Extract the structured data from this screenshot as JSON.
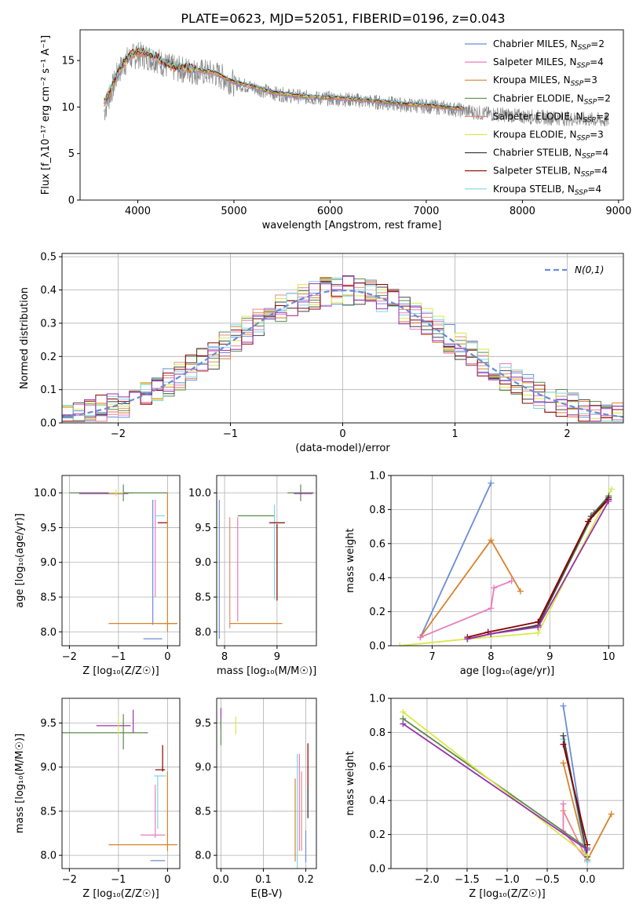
{
  "figure_title": "PLATE=0623, MJD=52051, FIBERID=0196, z=0.043",
  "chart_data": [
    {
      "id": "spectrum",
      "type": "line",
      "xlabel": "wavelength [Angstrom, rest frame]",
      "ylabel": "Flux [f_λ10⁻¹⁷ erg cm⁻² s⁻¹ A⁻¹]",
      "xlim": [
        3400,
        9050
      ],
      "ylim": [
        0,
        18.3
      ],
      "xticks": [
        4000,
        5000,
        6000,
        7000,
        8000,
        9000
      ],
      "yticks": [
        0,
        5,
        10,
        15
      ],
      "grid": false,
      "legend_position": "top-right",
      "data": {
        "x": [
          3650,
          3700,
          3800,
          3900,
          4000,
          4100,
          4200,
          4300,
          4400,
          4500,
          4600,
          4800,
          5000,
          5200,
          5400,
          5600,
          5800,
          6000,
          6200,
          6400,
          6600,
          6800,
          7000,
          7200,
          7400,
          7600,
          7800,
          8000,
          8200,
          8400,
          8600,
          8800,
          8900
        ],
        "y": [
          9.5,
          11.0,
          13.8,
          15.2,
          15.6,
          15.4,
          15.1,
          14.4,
          14.1,
          14.0,
          13.8,
          13.6,
          12.6,
          12.1,
          11.5,
          11.2,
          11.0,
          10.9,
          10.8,
          10.6,
          10.4,
          10.2,
          10.1,
          9.9,
          9.6,
          9.3,
          9.2,
          9.0,
          8.9,
          8.8,
          8.7,
          8.6,
          8.5
        ],
        "noise_amplitude": 1.5
      },
      "model": {
        "x": [
          3650,
          3700,
          3800,
          3900,
          4000,
          4100,
          4200,
          4300,
          4400,
          4500,
          4600,
          4800,
          5000,
          5200,
          5400,
          5600,
          5800,
          6000,
          6200,
          6400,
          6600,
          6800,
          7000,
          7200,
          7400
        ],
        "y": [
          10.5,
          11.5,
          14.0,
          15.4,
          16.0,
          15.8,
          15.3,
          14.6,
          14.3,
          14.2,
          14.0,
          13.7,
          12.7,
          12.2,
          11.6,
          11.3,
          11.1,
          11.0,
          10.9,
          10.7,
          10.5,
          10.3,
          10.2,
          10.0,
          9.8
        ]
      },
      "series": [
        {
          "name": "Chabrier MILES, N_SSP=2",
          "label_main": "Chabrier MILES, N",
          "label_sub": "SSP",
          "label_end": "=2",
          "color": "#6a8cd6"
        },
        {
          "name": "Salpeter MILES, N_SSP=4",
          "label_main": "Salpeter MILES, N",
          "label_sub": "SSP",
          "label_end": "=4",
          "color": "#e87dbe"
        },
        {
          "name": "Kroupa MILES, N_SSP=3",
          "label_main": "Kroupa MILES, N",
          "label_sub": "SSP",
          "label_end": "=3",
          "color": "#d9822b"
        },
        {
          "name": "Chabrier ELODIE, N_SSP=2",
          "label_main": "Chabrier ELODIE, N",
          "label_sub": "SSP",
          "label_end": "=2",
          "color": "#5a8a4a"
        },
        {
          "name": "Salpeter ELODIE, N_SSP=2",
          "label_main": "Salpeter ELODIE, N",
          "label_sub": "SSP",
          "label_end": "=2",
          "color": "#e58a80"
        },
        {
          "name": "Kroupa ELODIE, N_SSP=3",
          "label_main": "Kroupa ELODIE, N",
          "label_sub": "SSP",
          "label_end": "=3",
          "color": "#d9e84a"
        },
        {
          "name": "Chabrier STELIB, N_SSP=4",
          "label_main": "Chabrier STELIB, N",
          "label_sub": "SSP",
          "label_end": "=4",
          "color": "#444444"
        },
        {
          "name": "Salpeter STELIB, N_SSP=4",
          "label_main": "Salpeter STELIB, N",
          "label_sub": "SSP",
          "label_end": "=4",
          "color": "#8b0000"
        },
        {
          "name": "Kroupa STELIB, N_SSP=4",
          "label_main": "Kroupa STELIB, N",
          "label_sub": "SSP",
          "label_end": "=4",
          "color": "#7fd6e0"
        }
      ]
    },
    {
      "id": "residual_hist",
      "type": "line",
      "xlabel": "(data-model)/error",
      "ylabel": "Normed distribution",
      "xlim": [
        -2.5,
        2.5
      ],
      "ylim": [
        0,
        0.51
      ],
      "xticks": [
        -2,
        -1,
        0,
        1,
        2
      ],
      "yticks": [
        0.0,
        0.1,
        0.2,
        0.3,
        0.4,
        0.5
      ],
      "grid": true,
      "legend_position": "top-right",
      "gaussian_label": "N(0,1)",
      "gaussian_color": "#6a8cd6",
      "bin_width": 0.1,
      "series_colors": [
        "#6a8cd6",
        "#e87dbe",
        "#d9822b",
        "#5a8a4a",
        "#e58a80",
        "#d9e84a",
        "#444444",
        "#8b0000",
        "#7fd6e0",
        "#9b30b0"
      ],
      "noise_amplitude": 0.045
    },
    {
      "id": "age_vs_Z",
      "type": "scatter",
      "xlabel": "Z [log₁₀(Z/Z☉)]",
      "ylabel": "age  [log₁₀(age/yr)]",
      "xlim": [
        -2.15,
        0.25
      ],
      "ylim": [
        7.8,
        10.25
      ],
      "xticks": [
        -2,
        -1,
        0
      ],
      "yticks": [
        8.0,
        8.5,
        9.0,
        9.5,
        10.0
      ],
      "grid": true,
      "errorbars": [
        {
          "x": -1.0,
          "y": 10.0,
          "xerr": 1.0,
          "yerr": 0.0,
          "color": "#5a8a4a"
        },
        {
          "x": -1.3,
          "y": 9.99,
          "xerr": 0.5,
          "yerr": 0.0,
          "color": "#9b30b0"
        },
        {
          "x": -0.9,
          "y": 10.0,
          "xerr": 0.2,
          "yerr": 0.12,
          "color": "#5a8a4a"
        },
        {
          "x": -1.05,
          "y": 10.0,
          "xerr": 0.15,
          "yerr": 0.05,
          "color": "#d9e84a"
        },
        {
          "x": -0.3,
          "y": 9.0,
          "xerr": 0.0,
          "yerr": 0.9,
          "color": "#6a8cd6"
        },
        {
          "x": -0.25,
          "y": 9.2,
          "xerr": 0.0,
          "yerr": 0.7,
          "color": "#e87dbe"
        },
        {
          "x": -0.15,
          "y": 9.67,
          "xerr": 0.1,
          "yerr": 0.0,
          "color": "#7fd6e0"
        },
        {
          "x": -0.1,
          "y": 9.57,
          "xerr": 0.1,
          "yerr": 0.0,
          "color": "#8b0000"
        },
        {
          "x": 0.0,
          "y": 9.0,
          "xerr": 0.0,
          "yerr": 1.0,
          "color": "#d9822b"
        },
        {
          "x": -0.5,
          "y": 8.12,
          "xerr": 0.7,
          "yerr": 0.0,
          "color": "#d9822b"
        },
        {
          "x": 0.0,
          "y": 8.12,
          "xerr": 0.2,
          "yerr": 0.0,
          "color": "#d9822b"
        },
        {
          "x": -0.3,
          "y": 7.9,
          "xerr": 0.0,
          "yerr": 0.0,
          "color": "#6a8cd6"
        }
      ]
    },
    {
      "id": "age_vs_mass",
      "type": "scatter",
      "xlabel": "mass [log₁₀(M/M☉)]",
      "ylabel": "",
      "xlim": [
        7.85,
        9.75
      ],
      "ylim": [
        7.8,
        10.25
      ],
      "xticks": [
        8,
        9
      ],
      "yticks": [
        8.0,
        8.5,
        9.0,
        9.5,
        10.0
      ],
      "grid": true,
      "errorbars": [
        {
          "x": 7.9,
          "y": 8.9,
          "xerr": 0.0,
          "yerr": 1.0,
          "color": "#6a8cd6"
        },
        {
          "x": 8.1,
          "y": 8.85,
          "xerr": 0.0,
          "yerr": 0.8,
          "color": "#e58a80"
        },
        {
          "x": 8.25,
          "y": 8.9,
          "xerr": 0.0,
          "yerr": 0.75,
          "color": "#e87dbe"
        },
        {
          "x": 8.6,
          "y": 8.12,
          "xerr": 0.5,
          "yerr": 0.0,
          "color": "#d9822b"
        },
        {
          "x": 8.6,
          "y": 9.67,
          "xerr": 0.35,
          "yerr": 0.0,
          "color": "#5a8a4a"
        },
        {
          "x": 8.95,
          "y": 9.15,
          "xerr": 0.0,
          "yerr": 0.68,
          "color": "#7fd6e0"
        },
        {
          "x": 9.0,
          "y": 9.57,
          "xerr": 0.15,
          "yerr": 0.0,
          "color": "#8b0000"
        },
        {
          "x": 9.0,
          "y": 9.0,
          "xerr": 0.0,
          "yerr": 0.55,
          "color": "#8b0000"
        },
        {
          "x": 9.48,
          "y": 10.0,
          "xerr": 0.15,
          "yerr": 0.0,
          "color": "#444444"
        },
        {
          "x": 9.45,
          "y": 10.0,
          "xerr": 0.25,
          "yerr": 0.12,
          "color": "#5a8a4a"
        },
        {
          "x": 9.5,
          "y": 9.99,
          "xerr": 0.18,
          "yerr": 0.0,
          "color": "#9b30b0"
        }
      ]
    },
    {
      "id": "weight_vs_age",
      "type": "line",
      "xlabel": "age  [log₁₀(age/yr)]",
      "ylabel": "mass weight",
      "xlim": [
        6.3,
        10.25
      ],
      "ylim": [
        0,
        1.0
      ],
      "xticks": [
        7,
        8,
        9,
        10
      ],
      "yticks": [
        0.0,
        0.2,
        0.4,
        0.6,
        0.8,
        1.0
      ],
      "grid": true,
      "series": [
        {
          "color": "#6a8cd6",
          "x": [
            6.8,
            8.0
          ],
          "y": [
            0.05,
            0.955
          ]
        },
        {
          "color": "#d9822b",
          "x": [
            6.8,
            8.0,
            8.5
          ],
          "y": [
            0.05,
            0.62,
            0.32
          ]
        },
        {
          "color": "#e87dbe",
          "x": [
            6.8,
            8.0,
            8.05,
            8.35
          ],
          "y": [
            0.05,
            0.22,
            0.34,
            0.38
          ]
        },
        {
          "color": "#d9e84a",
          "x": [
            6.45,
            7.6,
            8.8,
            10.05
          ],
          "y": [
            0.0,
            0.04,
            0.075,
            0.92
          ]
        },
        {
          "color": "#5a8a4a",
          "x": [
            7.6,
            8.0,
            8.8,
            9.75,
            10.0
          ],
          "y": [
            0.04,
            0.07,
            0.12,
            0.78,
            0.88
          ]
        },
        {
          "color": "#444444",
          "x": [
            7.6,
            8.0,
            8.8,
            9.7,
            10.0
          ],
          "y": [
            0.04,
            0.07,
            0.12,
            0.76,
            0.87
          ]
        },
        {
          "color": "#8b0000",
          "x": [
            7.6,
            7.95,
            8.8,
            9.65,
            10.0
          ],
          "y": [
            0.05,
            0.08,
            0.14,
            0.73,
            0.86
          ]
        },
        {
          "color": "#9b30b0",
          "x": [
            7.6,
            8.0,
            8.8,
            10.0
          ],
          "y": [
            0.04,
            0.07,
            0.11,
            0.85
          ]
        }
      ]
    },
    {
      "id": "mass_vs_Z",
      "type": "scatter",
      "xlabel": "Z [log₁₀(Z/Z☉)]",
      "ylabel": "mass [log₁₀(M/M☉)]",
      "xlim": [
        -2.15,
        0.25
      ],
      "ylim": [
        7.85,
        9.78
      ],
      "xticks": [
        -2,
        -1,
        0
      ],
      "yticks": [
        8.0,
        8.5,
        9.0,
        9.5
      ],
      "grid": true,
      "errorbars": [
        {
          "x": -1.3,
          "y": 9.39,
          "xerr": 0.9,
          "yerr": 0.0,
          "color": "#5a8a4a"
        },
        {
          "x": -1.1,
          "y": 9.47,
          "xerr": 0.35,
          "yerr": 0.0,
          "color": "#9b30b0"
        },
        {
          "x": -0.9,
          "y": 9.4,
          "xerr": 0.0,
          "yerr": 0.2,
          "color": "#5a8a4a"
        },
        {
          "x": -0.7,
          "y": 9.52,
          "xerr": 0.0,
          "yerr": 0.13,
          "color": "#9b30b0"
        },
        {
          "x": -1.0,
          "y": 9.48,
          "xerr": 0.0,
          "yerr": 0.1,
          "color": "#d9e84a"
        },
        {
          "x": -0.15,
          "y": 8.97,
          "xerr": 0.1,
          "yerr": 0.0,
          "color": "#8b0000"
        },
        {
          "x": -0.1,
          "y": 9.1,
          "xerr": 0.0,
          "yerr": 0.15,
          "color": "#8b0000"
        },
        {
          "x": -0.15,
          "y": 8.9,
          "xerr": 0.12,
          "yerr": 0.0,
          "color": "#7fd6e0"
        },
        {
          "x": -0.2,
          "y": 8.6,
          "xerr": 0.0,
          "yerr": 0.3,
          "color": "#7fd6e0"
        },
        {
          "x": -0.3,
          "y": 8.23,
          "xerr": 0.25,
          "yerr": 0.0,
          "color": "#e87dbe"
        },
        {
          "x": -0.25,
          "y": 8.5,
          "xerr": 0.0,
          "yerr": 0.3,
          "color": "#e87dbe"
        },
        {
          "x": 0.0,
          "y": 8.5,
          "xerr": 0.0,
          "yerr": 0.45,
          "color": "#d9822b"
        },
        {
          "x": -0.5,
          "y": 8.12,
          "xerr": 0.7,
          "yerr": 0.0,
          "color": "#d9822b"
        },
        {
          "x": -0.2,
          "y": 7.94,
          "xerr": 0.15,
          "yerr": 0.0,
          "color": "#6a8cd6"
        }
      ]
    },
    {
      "id": "mass_vs_ebv",
      "type": "scatter",
      "xlabel": "E(B-V)",
      "ylabel": "",
      "xlim": [
        -0.01,
        0.225
      ],
      "ylim": [
        7.85,
        9.78
      ],
      "xticks": [
        0.0,
        0.1,
        0.2
      ],
      "yticks": [
        8.0,
        8.5,
        9.0,
        9.5
      ],
      "grid": true,
      "errorbars": [
        {
          "x": 0.0,
          "y": 9.55,
          "xerr": 0.0,
          "yerr": 0.12,
          "color": "#9b30b0"
        },
        {
          "x": 0.0,
          "y": 9.4,
          "xerr": 0.0,
          "yerr": 0.15,
          "color": "#5a8a4a"
        },
        {
          "x": 0.035,
          "y": 9.47,
          "xerr": 0.0,
          "yerr": 0.1,
          "color": "#d9e84a"
        },
        {
          "x": 0.175,
          "y": 8.4,
          "xerr": 0.0,
          "yerr": 0.47,
          "color": "#d9822b"
        },
        {
          "x": 0.18,
          "y": 8.5,
          "xerr": 0.0,
          "yerr": 0.65,
          "color": "#7fd6e0"
        },
        {
          "x": 0.185,
          "y": 8.6,
          "xerr": 0.0,
          "yerr": 0.55,
          "color": "#e87dbe"
        },
        {
          "x": 0.19,
          "y": 8.5,
          "xerr": 0.0,
          "yerr": 0.45,
          "color": "#e58a80"
        },
        {
          "x": 0.2,
          "y": 8.1,
          "xerr": 0.0,
          "yerr": 0.18,
          "color": "#6a8cd6"
        },
        {
          "x": 0.205,
          "y": 8.85,
          "xerr": 0.0,
          "yerr": 0.42,
          "color": "#8b0000"
        },
        {
          "x": 0.205,
          "y": 8.6,
          "xerr": 0.0,
          "yerr": 0.18,
          "color": "#444444"
        }
      ]
    },
    {
      "id": "weight_vs_Z",
      "type": "line",
      "xlabel": "Z [log₁₀(Z/Z☉)]",
      "ylabel": "mass weight",
      "xlim": [
        -2.45,
        0.45
      ],
      "ylim": [
        0,
        1.0
      ],
      "xticks": [
        -2.0,
        -1.5,
        -1.0,
        -0.5,
        0.0
      ],
      "yticks": [
        0.0,
        0.2,
        0.4,
        0.6,
        0.8,
        1.0
      ],
      "grid": true,
      "series": [
        {
          "color": "#6a8cd6",
          "x": [
            -0.3,
            0.0
          ],
          "y": [
            0.955,
            0.05
          ]
        },
        {
          "color": "#d9822b",
          "x": [
            -0.3,
            0.0,
            0.3
          ],
          "y": [
            0.62,
            0.05,
            0.32
          ]
        },
        {
          "color": "#e87dbe",
          "x": [
            -0.3,
            -0.3,
            0.0
          ],
          "y": [
            0.38,
            0.22,
            0.05
          ]
        },
        {
          "color": "#e58a80",
          "x": [
            -0.3,
            0.0
          ],
          "y": [
            0.34,
            0.05
          ]
        },
        {
          "color": "#7fd6e0",
          "x": [
            -0.3,
            0.0
          ],
          "y": [
            0.76,
            0.04
          ]
        },
        {
          "color": "#5a8a4a",
          "x": [
            -2.3,
            0.0
          ],
          "y": [
            0.88,
            0.12
          ]
        },
        {
          "color": "#444444",
          "x": [
            -0.3,
            0.0
          ],
          "y": [
            0.78,
            0.07
          ]
        },
        {
          "color": "#8b0000",
          "x": [
            -0.3,
            0.0
          ],
          "y": [
            0.73,
            0.14
          ]
        },
        {
          "color": "#d9e84a",
          "x": [
            -2.3,
            0.0
          ],
          "y": [
            0.92,
            0.075
          ]
        },
        {
          "color": "#9b30b0",
          "x": [
            -2.3,
            0.0
          ],
          "y": [
            0.85,
            0.11
          ]
        }
      ]
    }
  ]
}
